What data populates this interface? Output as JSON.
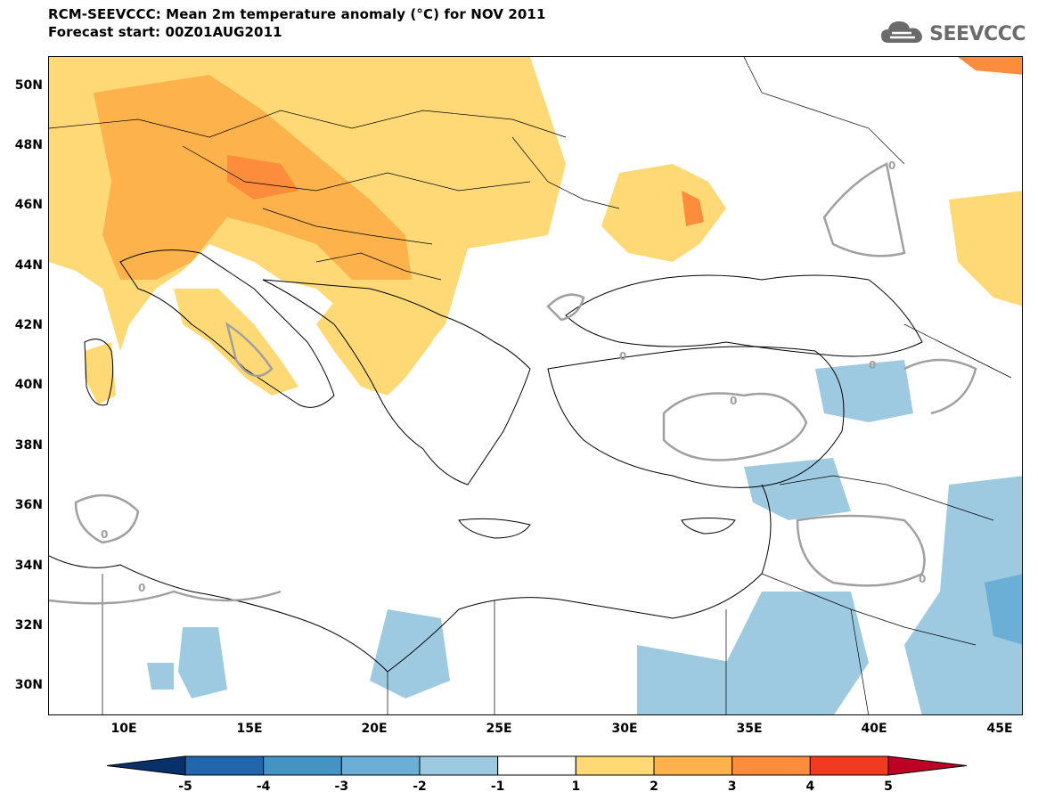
{
  "title": {
    "line1": "RCM-SEEVCCC: Mean 2m temperature anomaly (°C) for NOV 2011",
    "line2": "Forecast start: 00Z01AUG2011"
  },
  "logo": {
    "text": "SEEVCCC",
    "icon": "cloud-icon"
  },
  "axes": {
    "y_ticks": [
      "50N",
      "48N",
      "46N",
      "44N",
      "42N",
      "40N",
      "38N",
      "36N",
      "34N",
      "32N",
      "30N"
    ],
    "x_ticks": [
      "10E",
      "15E",
      "20E",
      "25E",
      "30E",
      "35E",
      "40E",
      "45E"
    ]
  },
  "contour_label": "0",
  "colorbar": {
    "labels": [
      "-5",
      "-4",
      "-3",
      "-2",
      "-1",
      "1",
      "2",
      "3",
      "4",
      "5"
    ],
    "colors": [
      "#08306b",
      "#2166ac",
      "#4393c3",
      "#6baed6",
      "#9ecae1",
      "#ffffff",
      "#fed976",
      "#feb24c",
      "#fd8d3c",
      "#f03b20",
      "#bd0026"
    ]
  }
}
